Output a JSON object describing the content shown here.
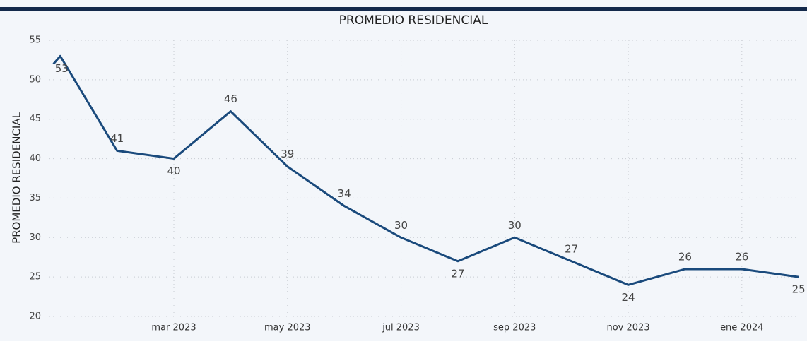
{
  "chart_data": {
    "type": "line",
    "title": "PROMEDIO RESIDENCIAL",
    "y_label": "PROMEDIO RESIDENCIAL",
    "x": [
      -0.12,
      0,
      1,
      2,
      3,
      4,
      5,
      6,
      7,
      8,
      9,
      10,
      11,
      12,
      13
    ],
    "xlim": [
      -0.19,
      13.06
    ],
    "xticks": [
      {
        "value": 2,
        "label": "mar 2023"
      },
      {
        "value": 4,
        "label": "may 2023"
      },
      {
        "value": 6,
        "label": "jul 2023"
      },
      {
        "value": 8,
        "label": "sep 2023"
      },
      {
        "value": 10,
        "label": "nov 2023"
      },
      {
        "value": 12,
        "label": "ene 2024"
      }
    ],
    "series": [
      {
        "name": "PROMEDIO RESIDENCIAL",
        "color": "#1a4a7c",
        "values": [
          52,
          53,
          41,
          40,
          46,
          39,
          34,
          30,
          27,
          30,
          27,
          24,
          26,
          26,
          25
        ]
      }
    ],
    "ylim": [
      20,
      55
    ],
    "yticks": [
      20,
      25,
      30,
      35,
      40,
      45,
      50,
      55
    ],
    "grid": true
  }
}
